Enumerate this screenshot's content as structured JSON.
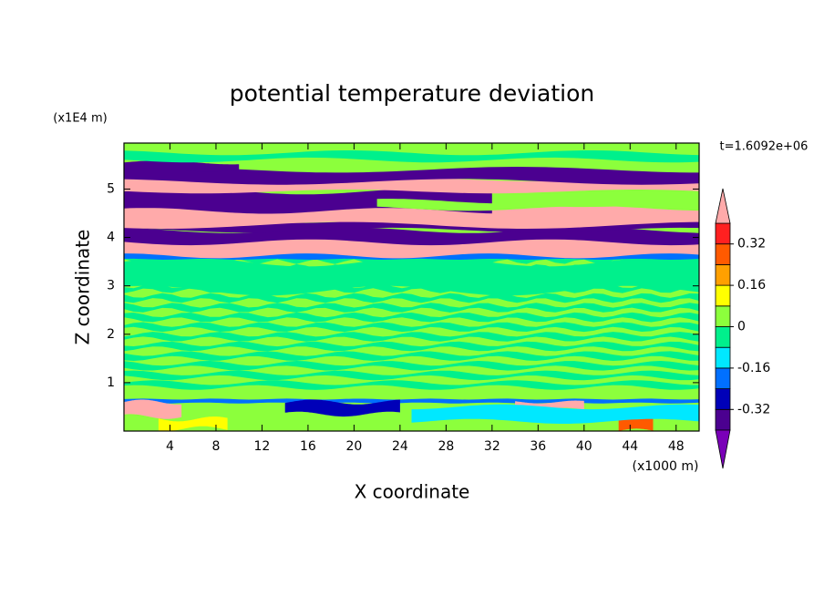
{
  "chart_data": {
    "type": "contour",
    "title": "potential temperature deviation",
    "xlabel": "X coordinate",
    "ylabel": "Z coordinate",
    "x_unit_label": "(x1000 m)",
    "y_unit_label": "(x1E4 m)",
    "time_label": "t=1.6092e+06",
    "xlim": [
      0,
      50
    ],
    "xticks": [
      4,
      8,
      12,
      16,
      20,
      24,
      28,
      32,
      36,
      40,
      44,
      48
    ],
    "ylim": [
      0,
      5.95
    ],
    "yticks": [
      1,
      2,
      3,
      4,
      5
    ],
    "colorbar": {
      "clim": [
        -0.4,
        0.4
      ],
      "ticks": [
        -0.32,
        -0.16,
        0,
        0.16,
        0.32
      ],
      "colors": [
        "#7a00b8",
        "#4b0090",
        "#0000b8",
        "#0070ff",
        "#00e8ff",
        "#00f08c",
        "#8cff3c",
        "#ffff00",
        "#ffa000",
        "#ff5a00",
        "#ff2020",
        "#ffaaaa"
      ]
    }
  }
}
